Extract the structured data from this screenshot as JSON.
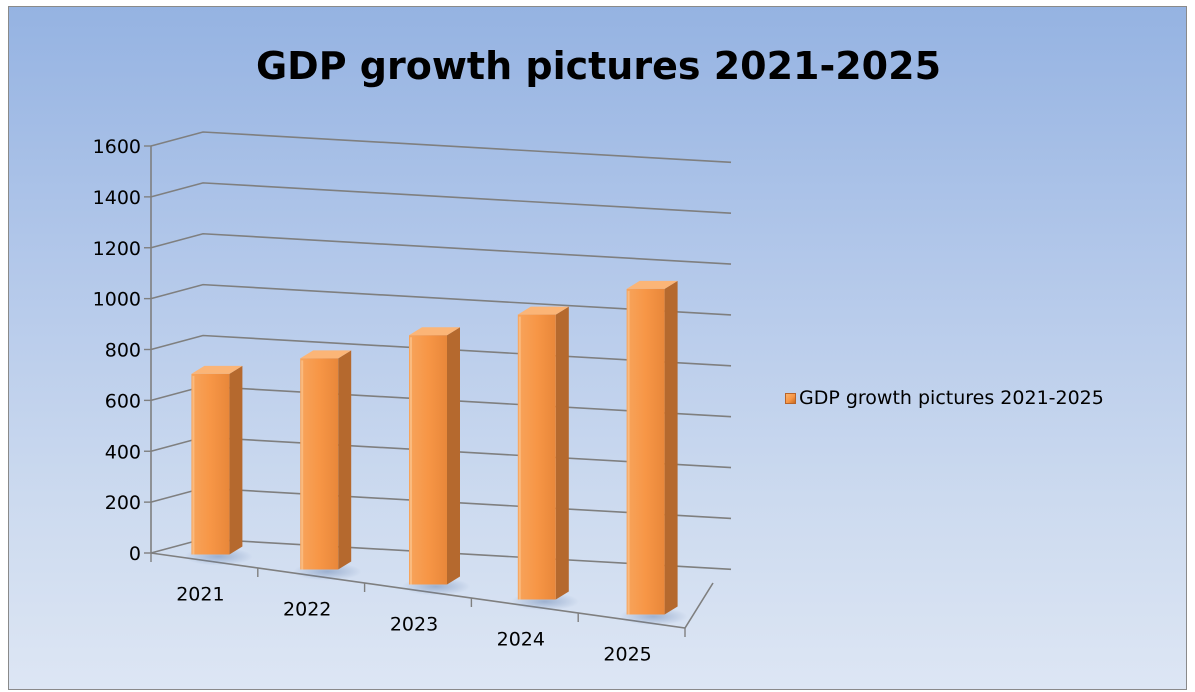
{
  "chart_data": {
    "type": "bar",
    "title": "GDP growth pictures 2021-2025",
    "categories": [
      "2021",
      "2022",
      "2023",
      "2024",
      "2025"
    ],
    "series": [
      {
        "name": "GDP growth pictures 2021-2025",
        "values": [
          710,
          830,
          980,
          1120,
          1280
        ]
      }
    ],
    "y_ticks": [
      "0",
      "200",
      "400",
      "600",
      "800",
      "1000",
      "1200",
      "1400",
      "1600"
    ],
    "ylim": [
      0,
      1600
    ],
    "grid": true,
    "legend_position": "right",
    "view": "3d-clustered-column",
    "colors": {
      "bar_front": "#f79646",
      "bar_side": "#b5692e",
      "bar_top": "#fbb577",
      "gridline": "#7f7f7f",
      "background_top": "#95b3e2",
      "background_bottom": "#dde6f4"
    }
  }
}
